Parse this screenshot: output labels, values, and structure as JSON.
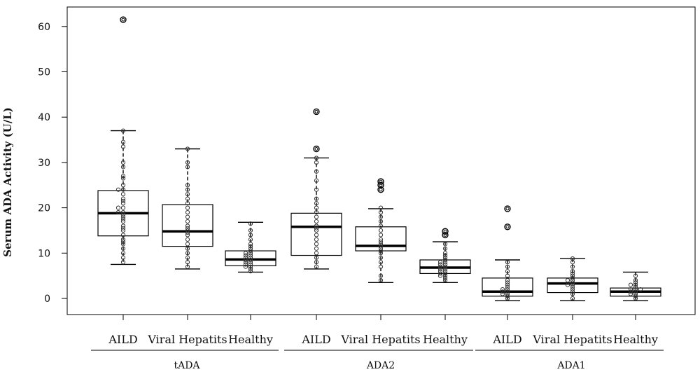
{
  "chart_data": {
    "type": "box",
    "ylabel": "Serum ADA Activity (U/L)",
    "ylim": [
      -4,
      66
    ],
    "yticks": [
      0,
      10,
      20,
      30,
      40,
      50,
      60
    ],
    "groups": [
      {
        "name": "tADA",
        "categories": [
          {
            "name": "AILD",
            "whisker_low": 7.5,
            "q1": 13.8,
            "median": 18.8,
            "q3": 23.8,
            "whisker_high": 37,
            "outliers": [
              61.5
            ],
            "points": [
              8,
              9,
              10,
              11,
              12,
              12.5,
              13,
              14,
              15,
              15.5,
              16,
              17,
              17.5,
              18,
              18.5,
              19,
              19,
              20,
              20,
              21,
              21.5,
              22,
              23,
              24,
              24,
              25,
              26.5,
              27,
              29,
              30,
              33.5,
              34.5,
              37
            ]
          },
          {
            "name": "Viral Hepatits",
            "whisker_low": 6.5,
            "q1": 11.5,
            "median": 14.8,
            "q3": 20.7,
            "whisker_high": 33,
            "outliers": [],
            "points": [
              7,
              8,
              9,
              10,
              11,
              12,
              13,
              14,
              14.5,
              15,
              15.5,
              16,
              17,
              18,
              19,
              20,
              21,
              22,
              23,
              24,
              25,
              29,
              30,
              33
            ]
          },
          {
            "name": "Healthy",
            "whisker_low": 5.8,
            "q1": 7.2,
            "median": 8.6,
            "q3": 10.5,
            "whisker_high": 16.8,
            "outliers": [],
            "points": [
              6,
              6.5,
              7,
              7,
              7.5,
              7.5,
              8,
              8,
              8.5,
              8.5,
              9,
              9,
              9.5,
              9.5,
              10,
              10,
              10.5,
              11,
              11.5,
              12,
              13,
              14,
              15,
              16.5
            ]
          }
        ]
      },
      {
        "name": "ADA2",
        "categories": [
          {
            "name": "AILD",
            "whisker_low": 6.5,
            "q1": 9.5,
            "median": 15.8,
            "q3": 18.8,
            "whisker_high": 31,
            "outliers": [
              33,
              41.2
            ],
            "points": [
              7,
              8,
              9,
              10,
              11,
              12,
              13,
              14,
              15,
              15.5,
              16,
              17,
              18,
              19,
              20,
              21,
              22,
              24,
              26,
              28,
              30,
              31
            ]
          },
          {
            "name": "Viral Hepatits",
            "whisker_low": 3.5,
            "q1": 10.5,
            "median": 11.6,
            "q3": 15.8,
            "whisker_high": 19.8,
            "outliers": [
              24,
              25,
              25.8
            ],
            "points": [
              4,
              5,
              7,
              8,
              9,
              10,
              10.5,
              11,
              11.5,
              12,
              12.5,
              13,
              14,
              15,
              16,
              17,
              18,
              19,
              20
            ]
          },
          {
            "name": "Healthy",
            "whisker_low": 3.5,
            "q1": 5.5,
            "median": 6.8,
            "q3": 8.5,
            "whisker_high": 12.5,
            "outliers": [
              14,
              14.8
            ],
            "points": [
              4,
              4.5,
              5,
              5,
              5.5,
              5.5,
              6,
              6,
              6.5,
              6.5,
              7,
              7,
              7.5,
              7.5,
              8,
              8,
              8.5,
              9,
              9.5,
              10,
              11,
              12
            ]
          }
        ]
      },
      {
        "name": "ADA1",
        "categories": [
          {
            "name": "AILD",
            "whisker_low": -0.5,
            "q1": 0.5,
            "median": 1.5,
            "q3": 4.5,
            "whisker_high": 8.5,
            "outliers": [
              15.8,
              19.8
            ],
            "points": [
              0,
              0.5,
              1,
              1,
              1.5,
              1.5,
              2,
              2,
              2.5,
              3,
              3.5,
              4,
              5,
              6,
              7,
              8
            ]
          },
          {
            "name": "Viral Hepatits",
            "whisker_low": -0.5,
            "q1": 1.3,
            "median": 3.3,
            "q3": 4.5,
            "whisker_high": 8.8,
            "outliers": [],
            "points": [
              0,
              1,
              1.5,
              2,
              2.5,
              3,
              3,
              3.5,
              4,
              4,
              4.5,
              5,
              5.5,
              6,
              7,
              8,
              8.8
            ]
          },
          {
            "name": "Healthy",
            "whisker_low": -0.5,
            "q1": 0.5,
            "median": 1.5,
            "q3": 2.3,
            "whisker_high": 5.8,
            "outliers": [],
            "points": [
              0,
              0.5,
              1,
              1,
              1.5,
              1.5,
              2,
              2,
              2,
              2.5,
              3,
              3,
              3.5,
              4,
              5
            ]
          }
        ]
      }
    ]
  }
}
